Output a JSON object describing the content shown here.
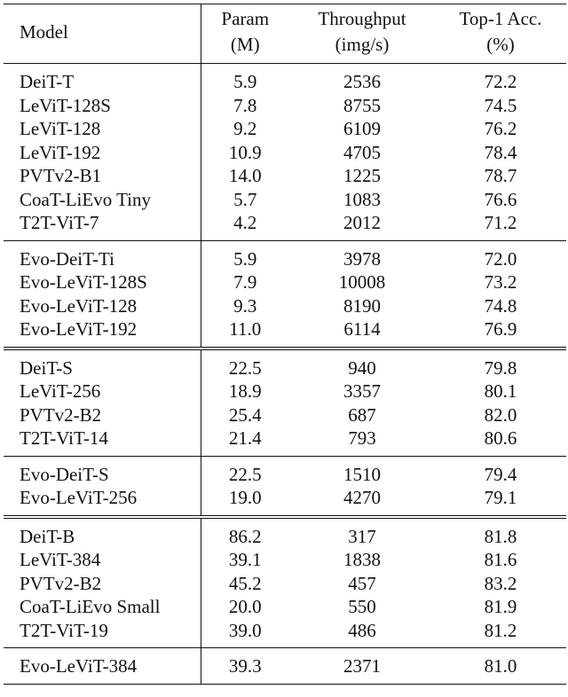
{
  "table": {
    "headers": {
      "model": "Model",
      "param_line1": "Param",
      "param_line2": "(M)",
      "throughput_line1": "Throughput",
      "throughput_line2": "(img/s)",
      "acc_line1": "Top-1 Acc.",
      "acc_line2": "(%)"
    },
    "groups": [
      {
        "separator": "head",
        "rows": [
          [
            "DeiT-T",
            "5.9",
            "2536",
            "72.2"
          ],
          [
            "LeViT-128S",
            "7.8",
            "8755",
            "74.5"
          ],
          [
            "LeViT-128",
            "9.2",
            "6109",
            "76.2"
          ],
          [
            "LeViT-192",
            "10.9",
            "4705",
            "78.4"
          ],
          [
            "PVTv2-B1",
            "14.0",
            "1225",
            "78.7"
          ],
          [
            "CoaT-LiEvo Tiny",
            "5.7",
            "1083",
            "76.6"
          ],
          [
            "T2T-ViT-7",
            "4.2",
            "2012",
            "71.2"
          ]
        ]
      },
      {
        "separator": "single",
        "rows": [
          [
            "Evo-DeiT-Ti",
            "5.9",
            "3978",
            "72.0"
          ],
          [
            "Evo-LeViT-128S",
            "7.9",
            "10008",
            "73.2"
          ],
          [
            "Evo-LeViT-128",
            "9.3",
            "8190",
            "74.8"
          ],
          [
            "Evo-LeViT-192",
            "11.0",
            "6114",
            "76.9"
          ]
        ]
      },
      {
        "separator": "double",
        "rows": [
          [
            "DeiT-S",
            "22.5",
            "940",
            "79.8"
          ],
          [
            "LeViT-256",
            "18.9",
            "3357",
            "80.1"
          ],
          [
            "PVTv2-B2",
            "25.4",
            "687",
            "82.0"
          ],
          [
            "T2T-ViT-14",
            "21.4",
            "793",
            "80.6"
          ]
        ]
      },
      {
        "separator": "single",
        "rows": [
          [
            "Evo-DeiT-S",
            "22.5",
            "1510",
            "79.4"
          ],
          [
            "Evo-LeViT-256",
            "19.0",
            "4270",
            "79.1"
          ]
        ]
      },
      {
        "separator": "double",
        "rows": [
          [
            "DeiT-B",
            "86.2",
            "317",
            "81.8"
          ],
          [
            "LeViT-384",
            "39.1",
            "1838",
            "81.6"
          ],
          [
            "PVTv2-B2",
            "45.2",
            "457",
            "83.2"
          ],
          [
            "CoaT-LiEvo Small",
            "20.0",
            "550",
            "81.9"
          ],
          [
            "T2T-ViT-19",
            "39.0",
            "486",
            "81.2"
          ]
        ]
      },
      {
        "separator": "single",
        "rows": [
          [
            "Evo-LeViT-384",
            "39.3",
            "2371",
            "81.0"
          ]
        ]
      }
    ]
  }
}
